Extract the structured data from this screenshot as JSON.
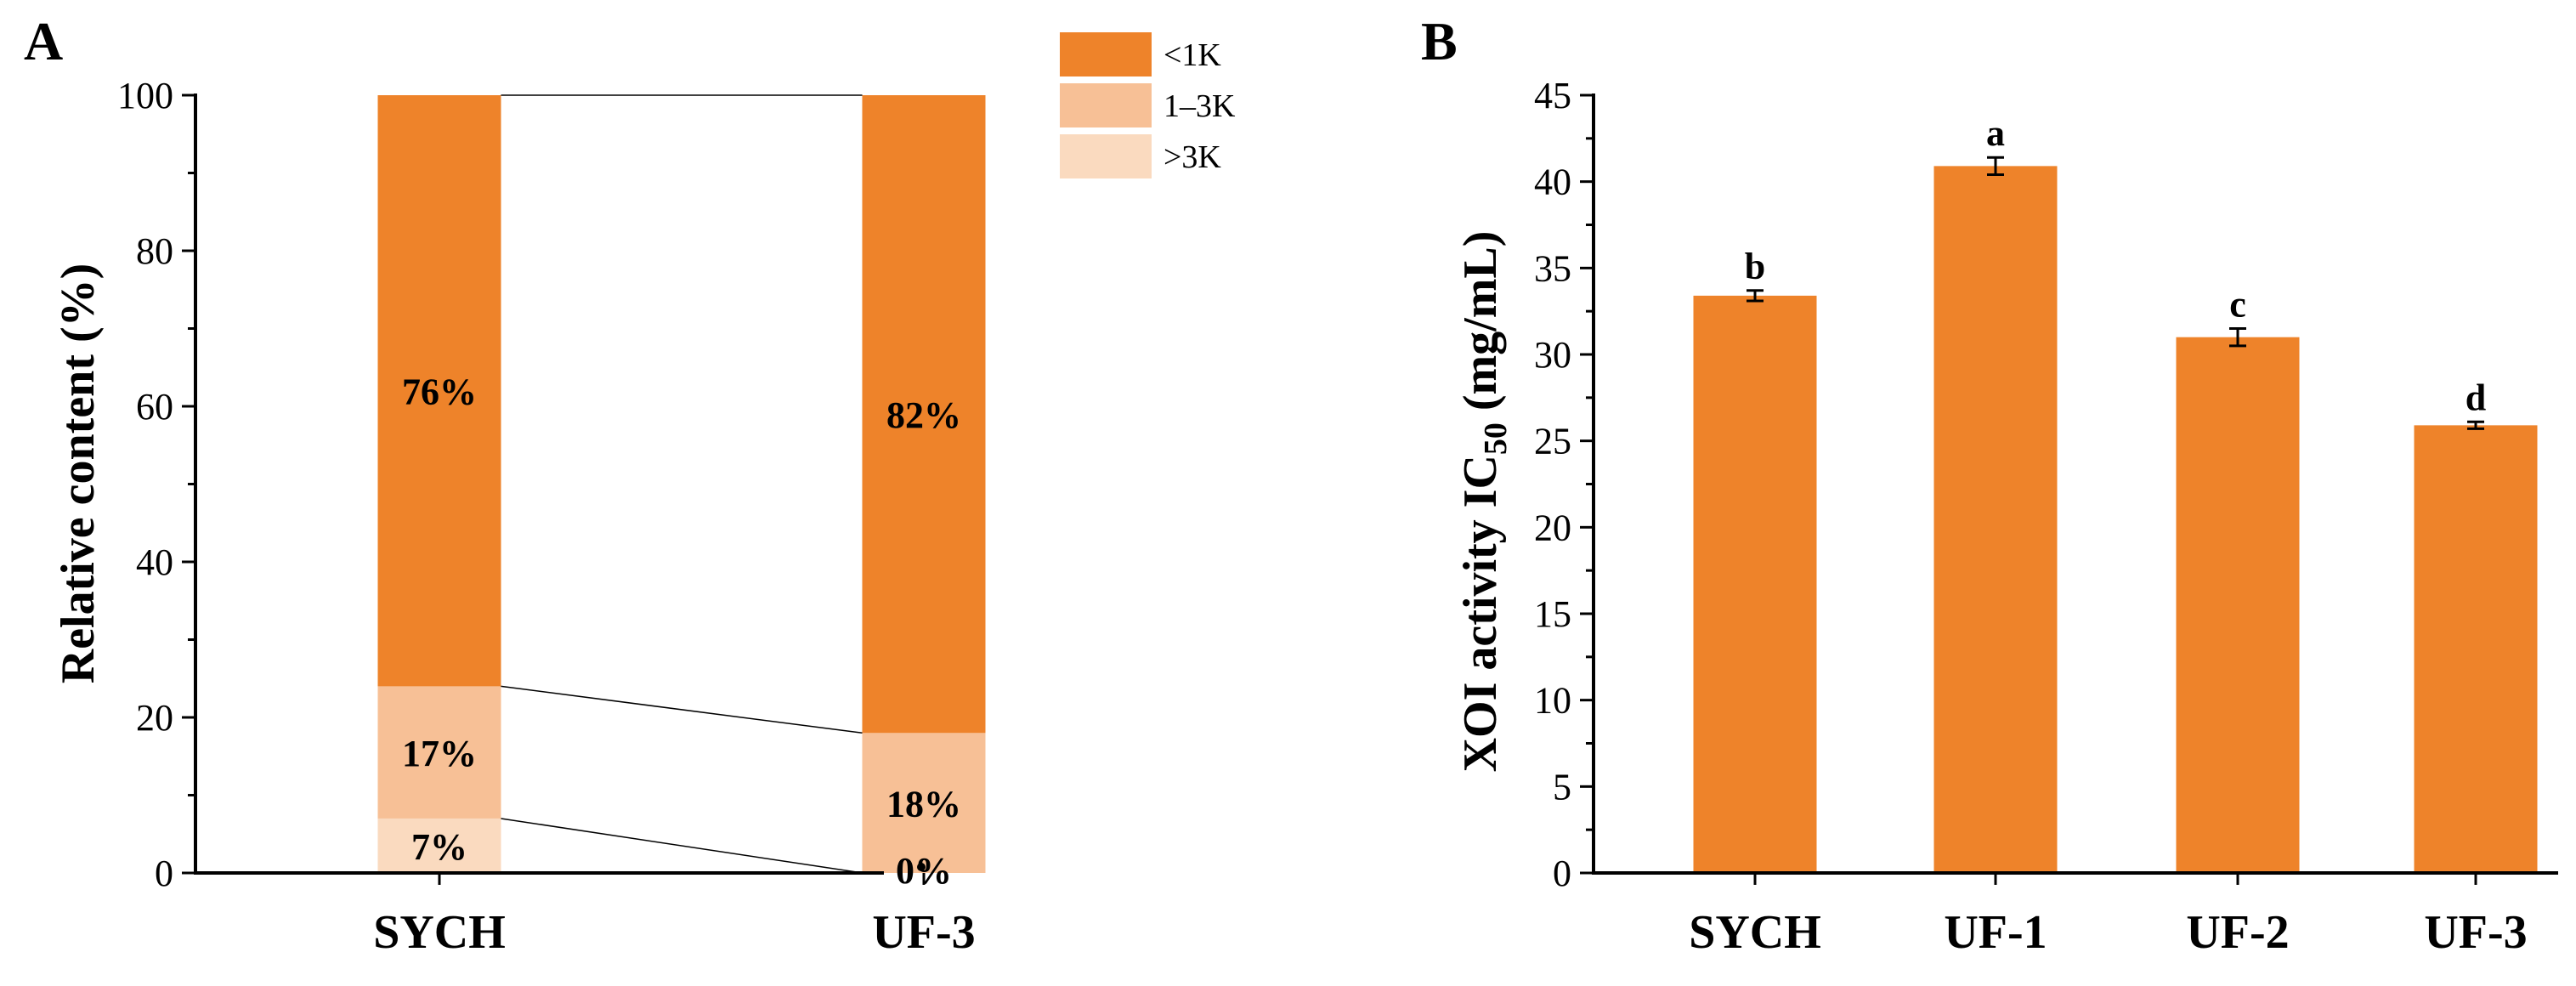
{
  "colors": {
    "seg_lt1k": "#EE832A",
    "seg_1to3k": "#F7C096",
    "seg_gt3k": "#FADABF",
    "bar": "#EE832A",
    "axis": "#000000"
  },
  "chart_data": [
    {
      "panel": "A",
      "type": "bar",
      "stacked": true,
      "categories": [
        "SYCH",
        "UF-3"
      ],
      "ylabel": "Relative content (%)",
      "ylim": [
        0,
        100
      ],
      "yticks": [
        0,
        20,
        40,
        60,
        80,
        100
      ],
      "legend_position": "top-right",
      "series": [
        {
          "name": ">3K",
          "color": "#FADABF",
          "values": [
            7,
            0
          ],
          "labels": [
            "7%",
            "0%"
          ]
        },
        {
          "name": "1–3K",
          "color": "#F7C096",
          "values": [
            17,
            18
          ],
          "labels": [
            "17%",
            "18%"
          ]
        },
        {
          "name": "<1K",
          "color": "#EE832A",
          "values": [
            76,
            82
          ],
          "labels": [
            "76%",
            "82%"
          ]
        }
      ]
    },
    {
      "panel": "B",
      "type": "bar",
      "categories": [
        "SYCH",
        "UF-1",
        "UF-2",
        "UF-3"
      ],
      "values": [
        33.4,
        40.9,
        31.0,
        25.9
      ],
      "errors": [
        0.3,
        0.5,
        0.5,
        0.2
      ],
      "significance": [
        "b",
        "a",
        "c",
        "d"
      ],
      "ylabel_main": "XOI activity IC",
      "ylabel_sub": "50",
      "ylabel_unit": " (mg/mL)",
      "ylim": [
        0,
        45
      ],
      "yticks": [
        0,
        5,
        10,
        15,
        20,
        25,
        30,
        35,
        40,
        45
      ]
    }
  ]
}
